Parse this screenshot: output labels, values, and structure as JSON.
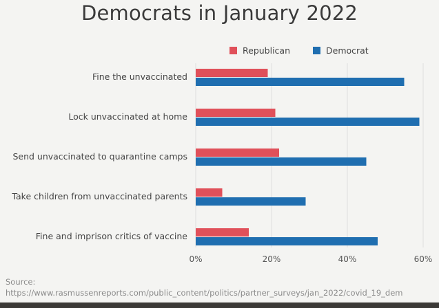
{
  "title": "Democrats in January 2022",
  "legend": {
    "items": [
      {
        "label": "Republican",
        "color": "#e0505a"
      },
      {
        "label": "Democrat",
        "color": "#1f6eb0"
      }
    ]
  },
  "source": {
    "label": "Source:",
    "url": "https://www.rasmussenreports.com/public_content/politics/partner_surveys/jan_2022/covid_19_dem"
  },
  "chart_data": {
    "type": "bar",
    "orientation": "horizontal",
    "title": "Democrats in January 2022",
    "categories": [
      "Fine the unvaccinated",
      "Lock unvaccinated at home",
      "Send unvaccinated to quarantine camps",
      "Take children from unvaccinated parents",
      "Fine and imprison critics of vaccine"
    ],
    "series": [
      {
        "name": "Republican",
        "color": "#e0505a",
        "values": [
          19,
          21,
          22,
          7,
          14
        ]
      },
      {
        "name": "Democrat",
        "color": "#1f6eb0",
        "values": [
          55,
          59,
          45,
          29,
          48
        ]
      }
    ],
    "xlim": [
      0,
      60
    ],
    "xticks": [
      "0%",
      "20%",
      "40%",
      "60%"
    ],
    "xtick_values": [
      0,
      20,
      40,
      60
    ],
    "grid": true,
    "legend_position": "top-right"
  }
}
